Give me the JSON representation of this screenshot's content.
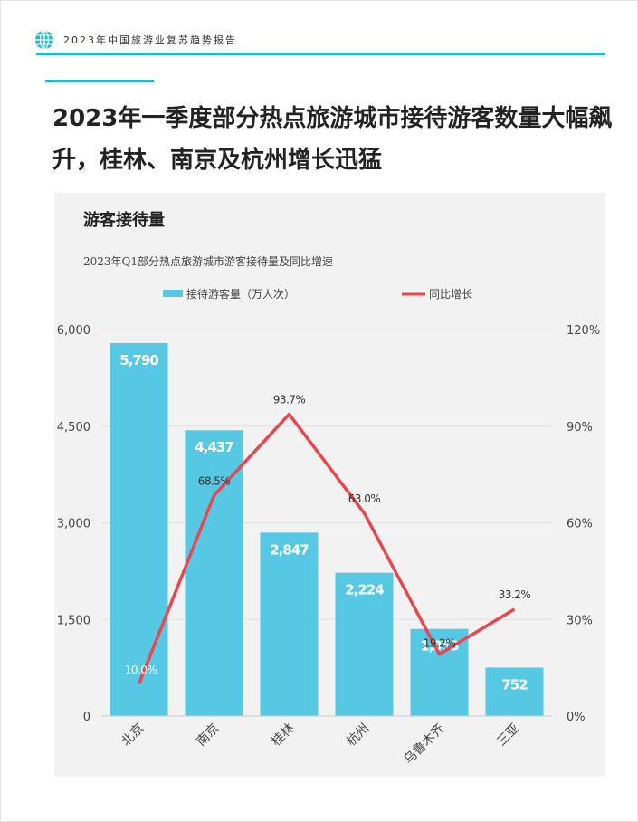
{
  "header": {
    "report_title": "2023年中国旅游业复苏趋势报告",
    "accent_color": "#2bb7c2",
    "logo_icon": "globe-icon"
  },
  "headline": {
    "line1": "2023年一季度部分热点旅游城市接待游客数量大幅飙",
    "line2": "升，桂林、南京及杭州增长迅猛"
  },
  "panel": {
    "title": "游客接待量"
  },
  "chart_data": {
    "type": "bar",
    "title": "2023年Q1部分热点旅游城市游客接待量及同比增速",
    "categories": [
      "北京",
      "南京",
      "桂林",
      "杭州",
      "乌鲁木齐",
      "三亚"
    ],
    "series": [
      {
        "name": "接待游客量（万人次）",
        "type": "bar",
        "axis": "left",
        "color": "#56c8e3",
        "values": [
          5790,
          4437,
          2847,
          2224,
          1353,
          752
        ],
        "labels": [
          "5,790",
          "4,437",
          "2,847",
          "2,224",
          "1,353",
          "752"
        ]
      },
      {
        "name": "同比增长",
        "type": "line",
        "axis": "right",
        "color": "#e8474f",
        "values": [
          10.0,
          68.5,
          93.7,
          63.0,
          19.2,
          33.2
        ],
        "labels": [
          "10.0%",
          "68.5%",
          "93.7%",
          "63.0%",
          "19.2%",
          "33.2%"
        ]
      }
    ],
    "y_left": {
      "ylim": [
        0,
        6000
      ],
      "ticks": [
        0,
        1500,
        3000,
        4500,
        6000
      ],
      "tick_labels": [
        "0",
        "1,500",
        "3,000",
        "4,500",
        "6,000"
      ]
    },
    "y_right": {
      "ylim": [
        0,
        120
      ],
      "ticks": [
        0,
        30,
        60,
        90,
        120
      ],
      "tick_labels": [
        "0%",
        "30%",
        "60%",
        "90%",
        "120%"
      ]
    },
    "legend_position": "top",
    "grid": true
  }
}
